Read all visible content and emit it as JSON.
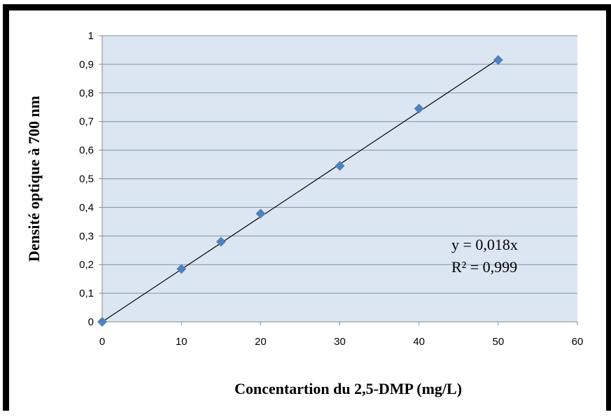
{
  "chart_data": {
    "type": "scatter",
    "xlabel": "Concentartion  du 2,5-DMP (mg/L)",
    "ylabel": "Densité optique à 700 nm",
    "xlim": [
      0,
      60
    ],
    "ylim": [
      0,
      1
    ],
    "x_ticks": [
      "0",
      "10",
      "20",
      "30",
      "40",
      "50",
      "60"
    ],
    "y_ticks": [
      "0",
      "0,1",
      "0,2",
      "0,3",
      "0,4",
      "0,5",
      "0,6",
      "0,7",
      "0,8",
      "0,9",
      "1"
    ],
    "grid": "horizontal",
    "series": [
      {
        "x": [
          0,
          10,
          15,
          20,
          30,
          40,
          50
        ],
        "y": [
          0,
          0.185,
          0.28,
          0.378,
          0.545,
          0.745,
          0.915
        ],
        "marker": "diamond",
        "color": "#4F81BD"
      }
    ],
    "trendline": {
      "type": "linear",
      "x": [
        0,
        50
      ],
      "y": [
        0,
        0.918
      ],
      "color": "#000000"
    },
    "annotations": [
      "y = 0,018x",
      "R² = 0,999"
    ],
    "plot_background": "#DCE6F2",
    "gridline_color": "#7F8FA6"
  }
}
